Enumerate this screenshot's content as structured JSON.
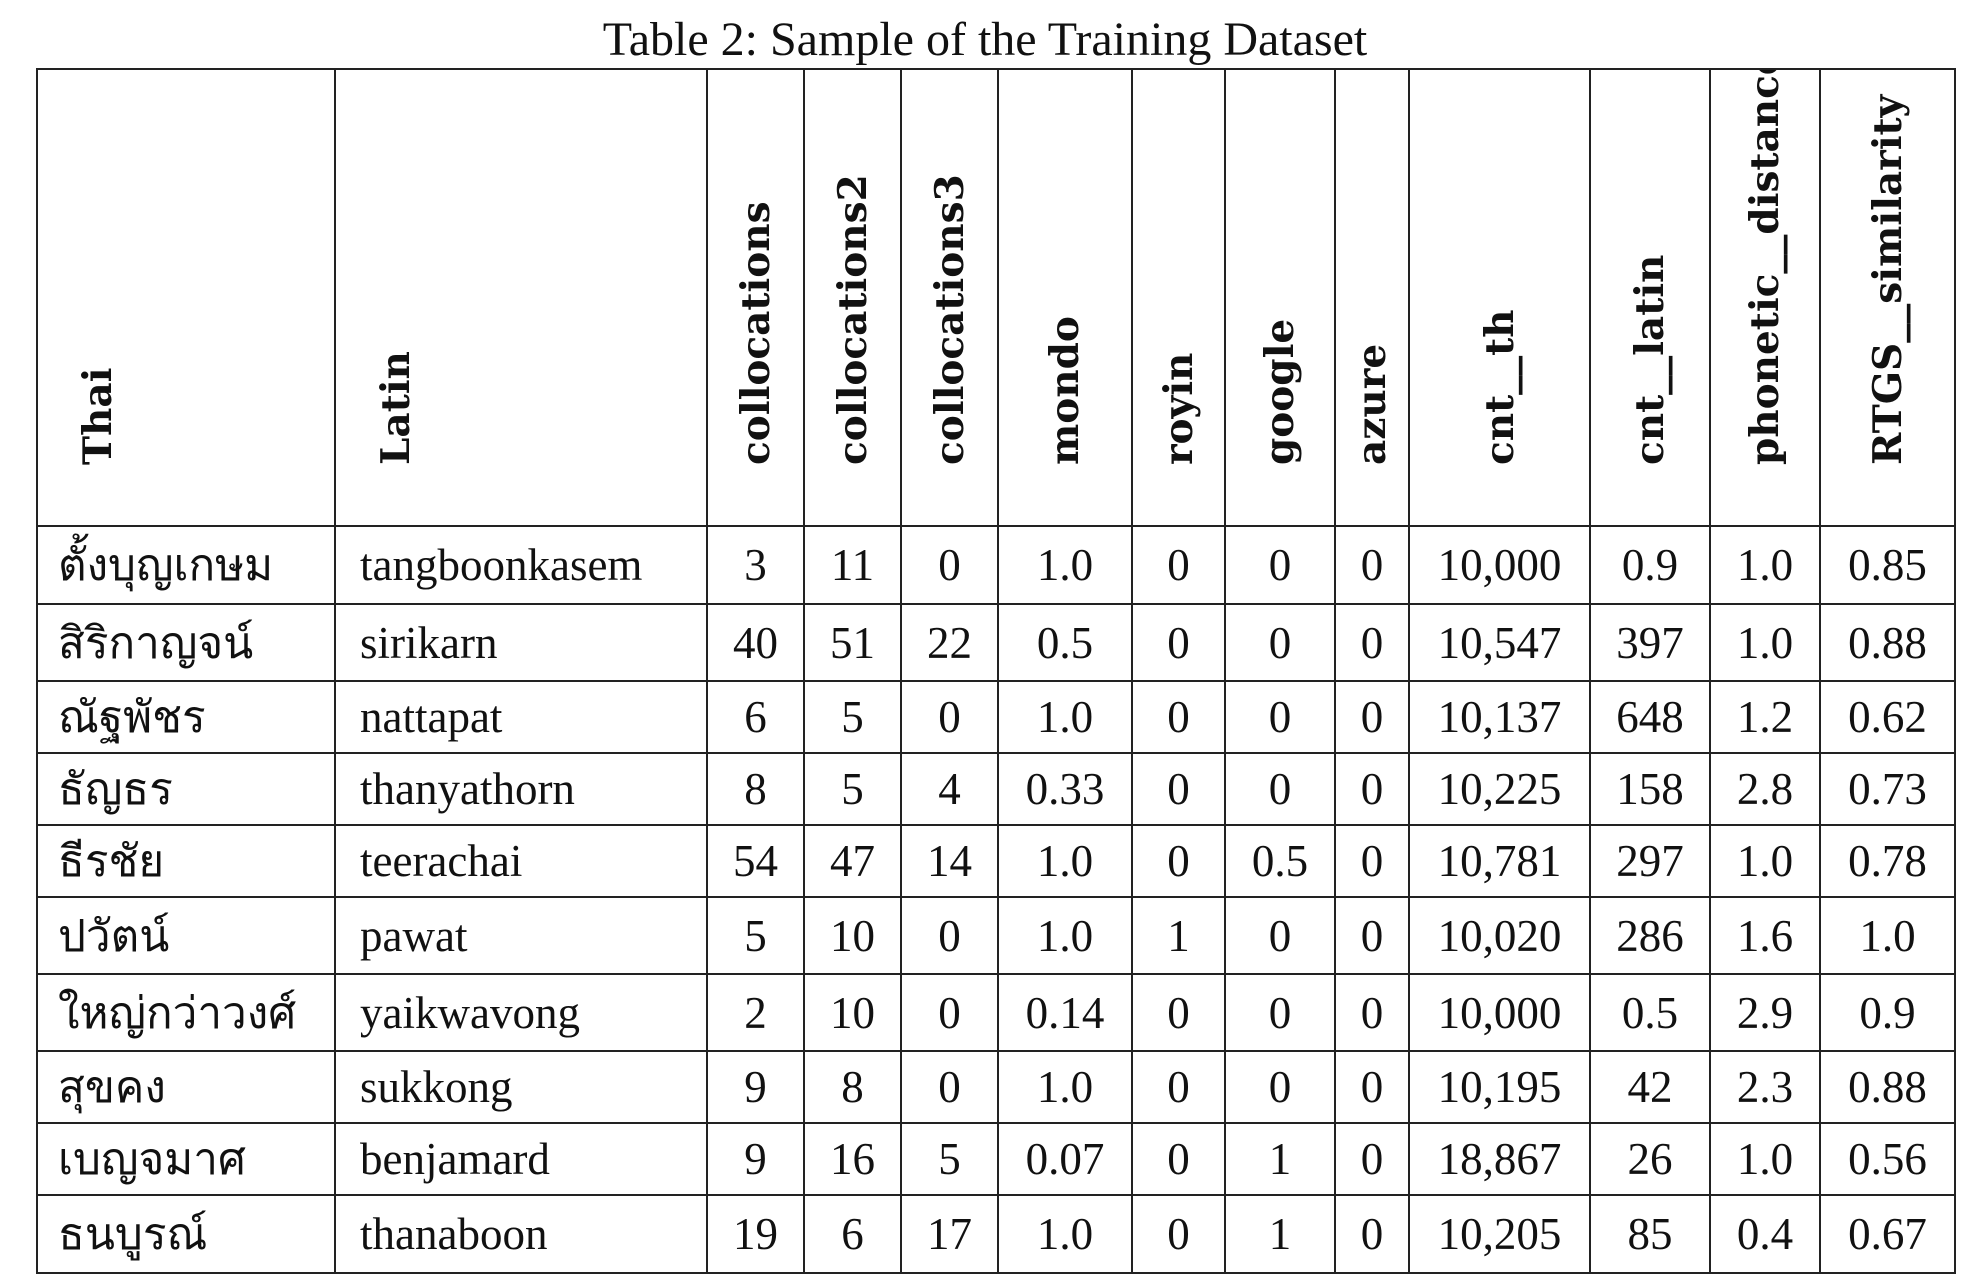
{
  "caption": "Table 2: Sample of the Training Dataset",
  "columns": [
    "Thai",
    "Latin",
    "collocations",
    "collocations2",
    "collocations3",
    "mondo",
    "royin",
    "google",
    "azure",
    "cnt__th",
    "cnt__latin",
    "phonetic__distance",
    "RTGS__similarity"
  ],
  "rows": [
    [
      "ตั้งบุญเกษม",
      "tangboonkasem",
      "3",
      "11",
      "0",
      "1.0",
      "0",
      "0",
      "0",
      "10,000",
      "0.9",
      "1.0",
      "0.85"
    ],
    [
      "สิริกาญจน์",
      "sirikarn",
      "40",
      "51",
      "22",
      "0.5",
      "0",
      "0",
      "0",
      "10,547",
      "397",
      "1.0",
      "0.88"
    ],
    [
      "ณัฐพัชร",
      "nattapat",
      "6",
      "5",
      "0",
      "1.0",
      "0",
      "0",
      "0",
      "10,137",
      "648",
      "1.2",
      "0.62"
    ],
    [
      "ธัญธร",
      "thanyathorn",
      "8",
      "5",
      "4",
      "0.33",
      "0",
      "0",
      "0",
      "10,225",
      "158",
      "2.8",
      "0.73"
    ],
    [
      "ธีรชัย",
      "teerachai",
      "54",
      "47",
      "14",
      "1.0",
      "0",
      "0.5",
      "0",
      "10,781",
      "297",
      "1.0",
      "0.78"
    ],
    [
      "ปวัตน์",
      "pawat",
      "5",
      "10",
      "0",
      "1.0",
      "1",
      "0",
      "0",
      "10,020",
      "286",
      "1.6",
      "1.0"
    ],
    [
      "ใหญ่กว่าวงศ์",
      "yaikwavong",
      "2",
      "10",
      "0",
      "0.14",
      "0",
      "0",
      "0",
      "10,000",
      "0.5",
      "2.9",
      "0.9"
    ],
    [
      "สุขคง",
      "sukkong",
      "9",
      "8",
      "0",
      "1.0",
      "0",
      "0",
      "0",
      "10,195",
      "42",
      "2.3",
      "0.88"
    ],
    [
      "เบญจมาศ",
      "benjamard",
      "9",
      "16",
      "5",
      "0.07",
      "0",
      "1",
      "0",
      "18,867",
      "26",
      "1.0",
      "0.56"
    ],
    [
      "ธนบูรณ์",
      "thanaboon",
      "19",
      "6",
      "17",
      "1.0",
      "0",
      "1",
      "0",
      "10,205",
      "85",
      "0.4",
      "0.67"
    ]
  ]
}
